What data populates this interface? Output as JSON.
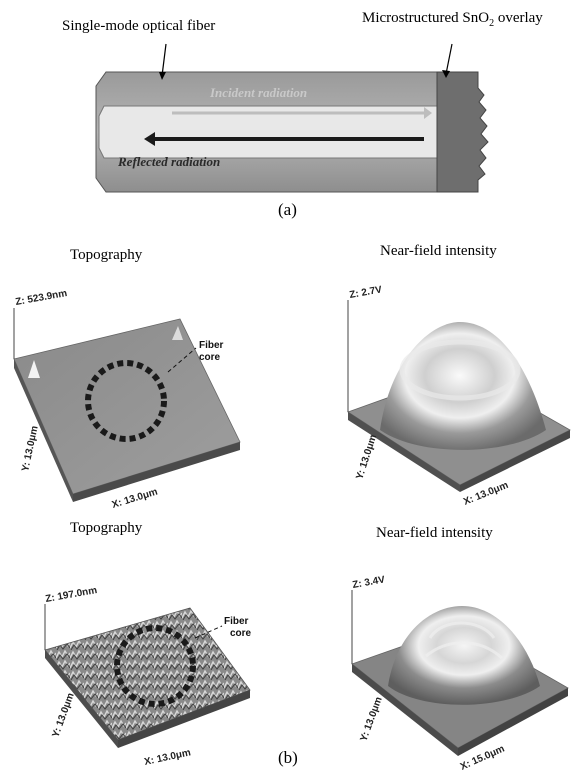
{
  "diagram_a": {
    "fiber_label": "Single-mode optical fiber",
    "overlay_label_pre": "Microstructured SnO",
    "overlay_label_sub": "2",
    "overlay_label_post": " overlay",
    "incident_label": "Incident radiation",
    "reflected_label": "Reflected radiation",
    "caption": "(a)"
  },
  "panel_b": {
    "caption": "(b)",
    "top_left": {
      "title": "Topography",
      "z_label": "Z: 523.9nm",
      "y_label": "Y: 13.0μm",
      "x_label": "X: 13.0μm",
      "core_line1": "Fiber",
      "core_line2": "core"
    },
    "top_right": {
      "title": "Near-field intensity",
      "z_label": "Z: 2.7V",
      "y_label": "Y: 13.0μm",
      "x_label": "X: 13.0μm"
    },
    "bottom_left": {
      "title": "Topography",
      "z_label": "Z: 197.0nm",
      "y_label": "Y: 13.0μm",
      "x_label": "X: 13.0μm",
      "core_line1": "Fiber",
      "core_line2": "core"
    },
    "bottom_right": {
      "title": "Near-field intensity",
      "z_label": "Z: 3.4V",
      "y_label": "Y: 13.0μm",
      "x_label": "X: 15.0μm"
    }
  }
}
